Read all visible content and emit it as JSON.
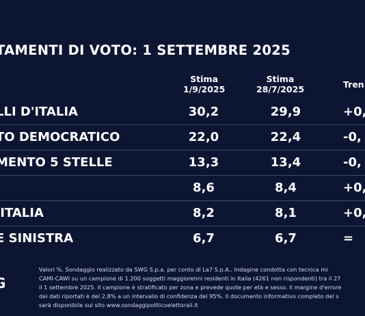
{
  "title": "TAMENTI DI VOTO: 1 SETTEMBRE 2025",
  "columns": {
    "c1_line1": "Stima",
    "c1_line2": "1/9/2025",
    "c2_line1": "Stima",
    "c2_line2": "28/7/2025",
    "c3": "Tren"
  },
  "rows": [
    {
      "name": "LLI D'ITALIA",
      "v1": "30,2",
      "v2": "29,9",
      "trend": "+0,"
    },
    {
      "name": "TO DEMOCRATICO",
      "v1": "22,0",
      "v2": "22,4",
      "trend": "-0,"
    },
    {
      "name": "MENTO 5 STELLE",
      "v1": "13,3",
      "v2": "13,4",
      "trend": "-0,"
    },
    {
      "name": "",
      "v1": "8,6",
      "v2": "8,4",
      "trend": "+0,"
    },
    {
      "name": " ITALIA",
      "v1": "8,2",
      "v2": "8,1",
      "trend": "+0,"
    },
    {
      "name": "E SINISTRA",
      "v1": "6,7",
      "v2": "6,7",
      "trend": "="
    }
  ],
  "logo": "G",
  "footnote": [
    "Valori %. Sondaggio realizzato da SWG S.p.a. per conto di La7 S.p.A.. Indagine condotta con tecnica mi",
    "CAMI-CAWI su un campione di 1.200 soggetti maggiorenni residenti in Italia (4261 non rispondenti) tra il 27",
    "il 1 settembre 2025. Il campione è stratificato per zona e prevede quote per età e sesso. Il margine d'errore",
    "dei dati riportati è del 2,8% a un intervallo di confidenza del 95%. Il documento informativo completo del s",
    "sarà disponibile sul sito www.sondaggipoliticoelettorali.it"
  ]
}
